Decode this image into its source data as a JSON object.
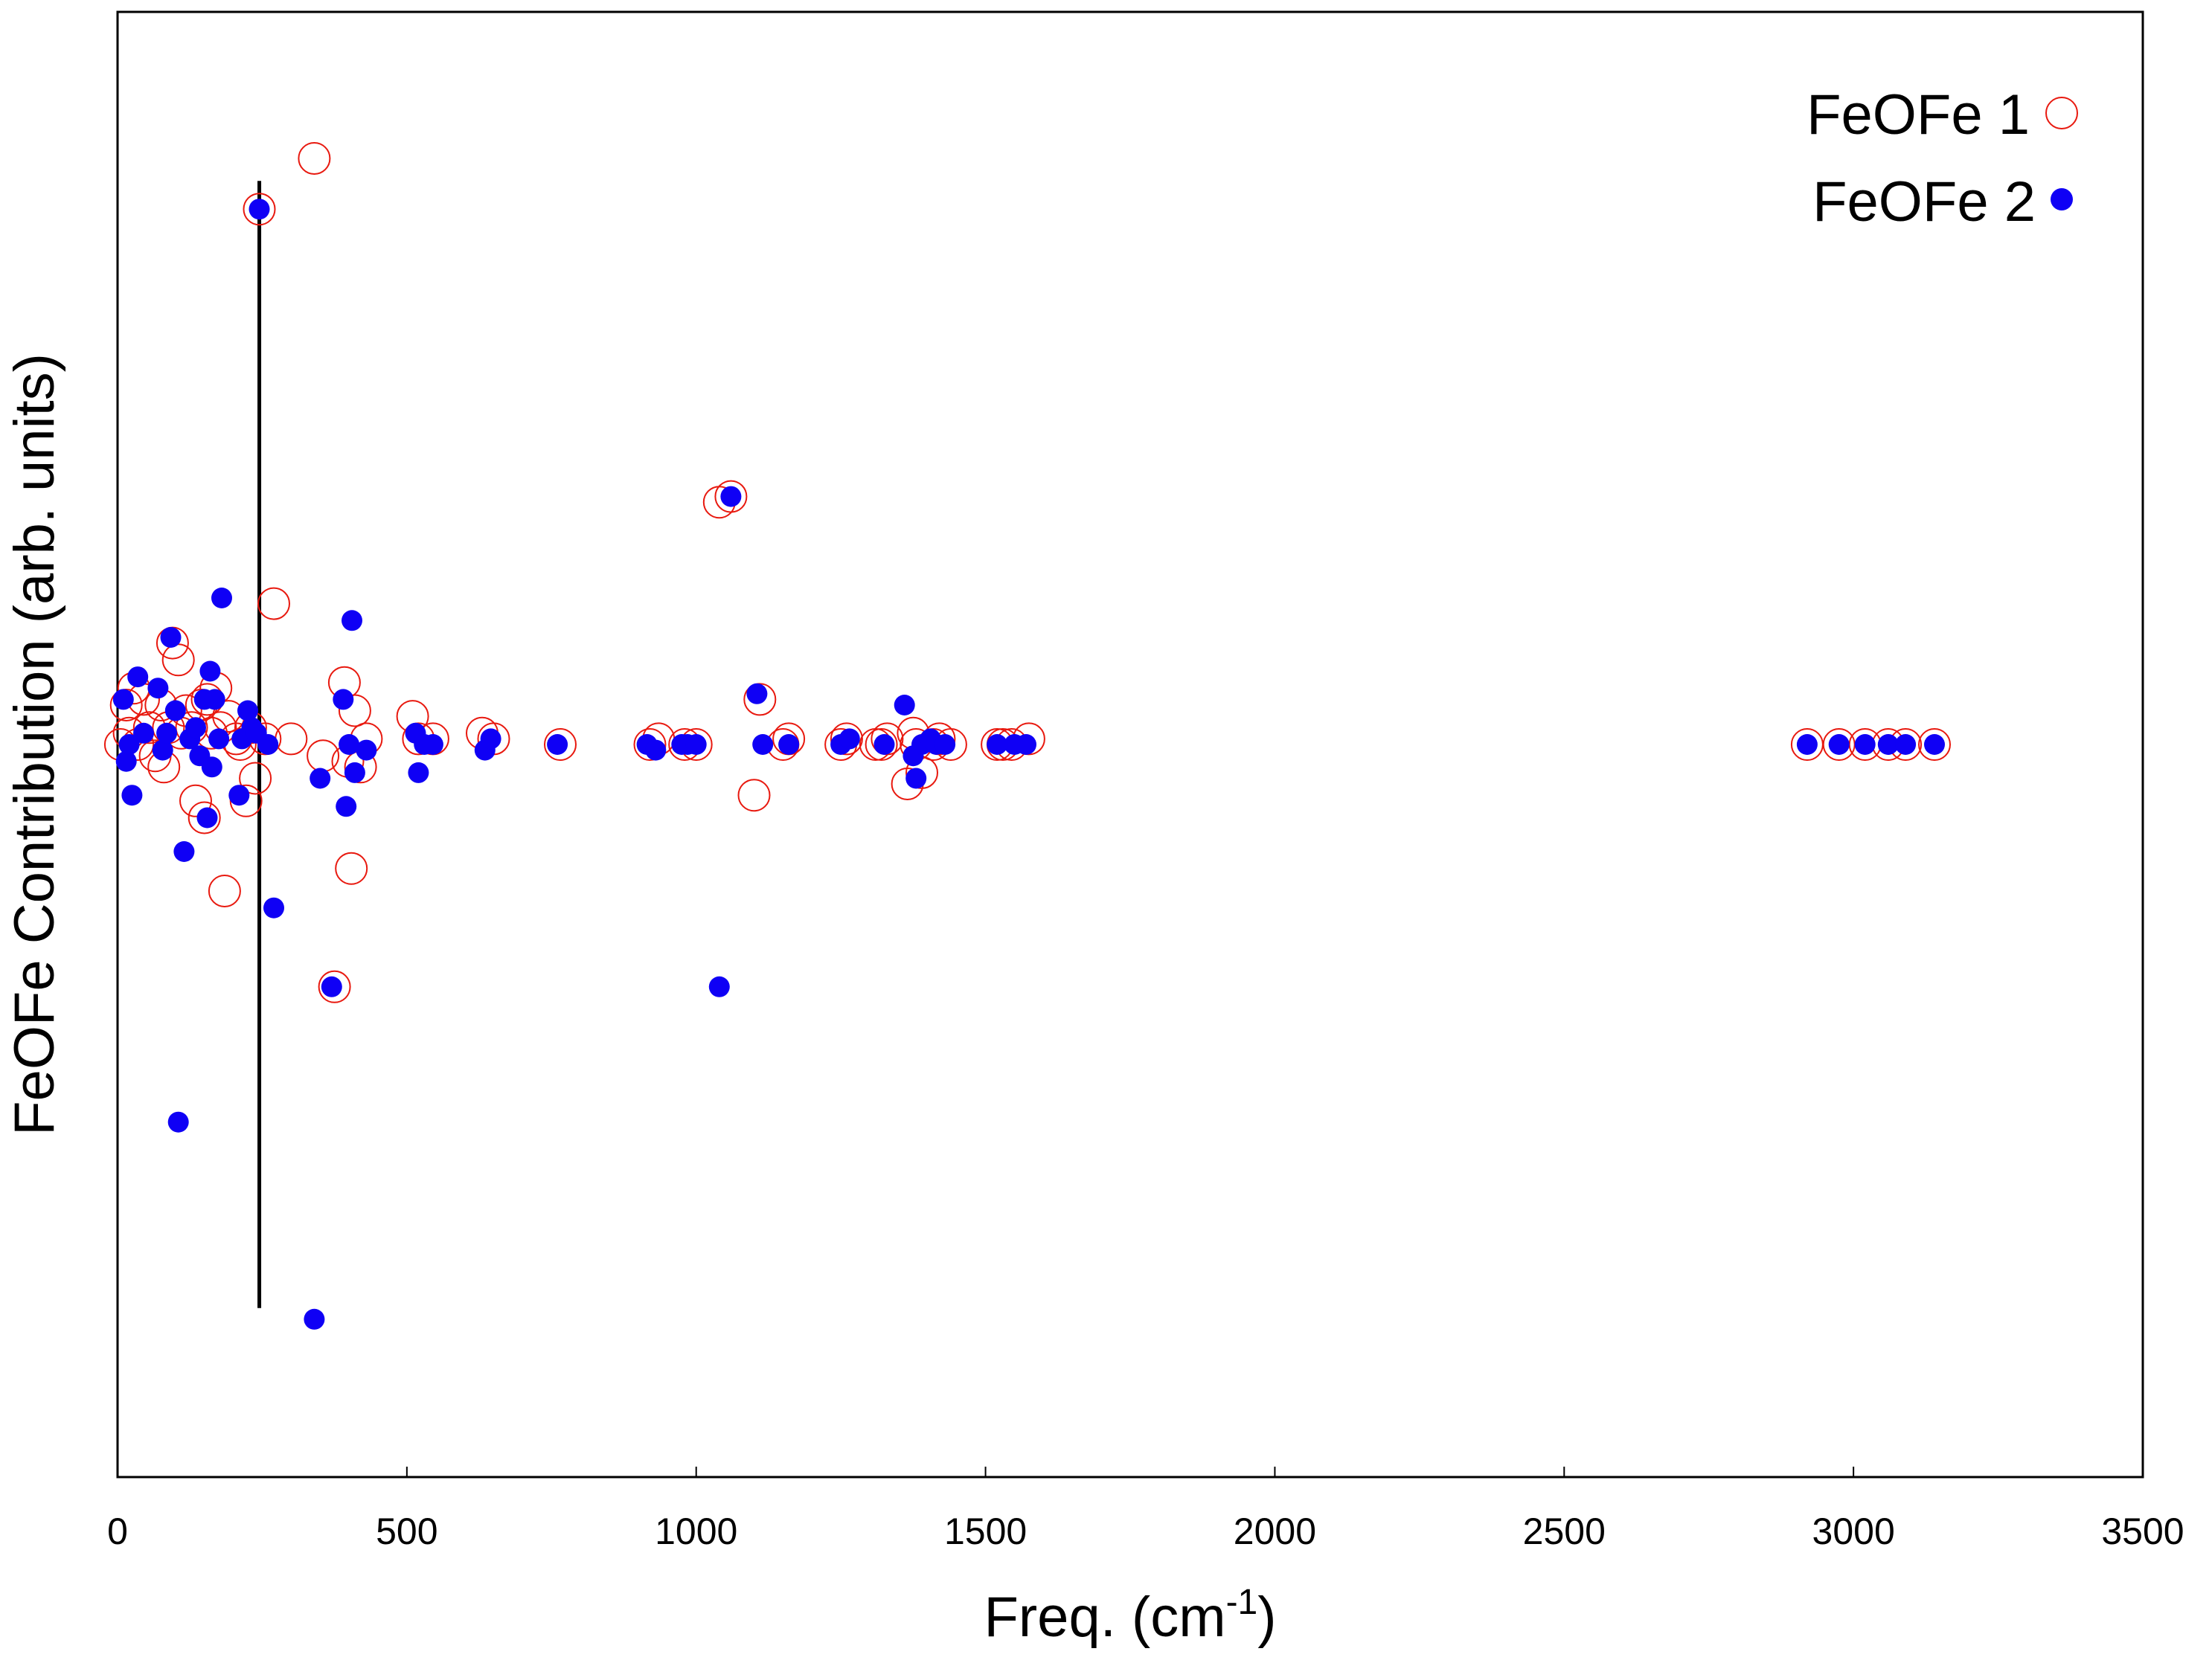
{
  "chart_data": {
    "type": "scatter",
    "xlabel": "Freq. (cm",
    "xlabel_sup": "-1",
    "xlabel_suffix": ")",
    "ylabel": "FeOFe Contribution (arb. units)",
    "xlim": [
      0,
      3500
    ],
    "ylim": [
      -1.3,
      1.3
    ],
    "xticks": [
      "0",
      "500",
      "1000",
      "1500",
      "2000",
      "2500",
      "3000",
      "3500"
    ],
    "grid": false,
    "legend_position": "top-right",
    "reference_line": {
      "x": 245,
      "y_range": [
        -1.0,
        1.0
      ]
    },
    "series": [
      {
        "name": "FeOFe 1",
        "marker": "open-circle",
        "color": "#e8190f",
        "points": [
          [
            5,
            0
          ],
          [
            15,
            0.07
          ],
          [
            20,
            0.02
          ],
          [
            28,
            0.1
          ],
          [
            35,
            0
          ],
          [
            45,
            0.08
          ],
          [
            55,
            0.03
          ],
          [
            65,
            -0.02
          ],
          [
            75,
            0.07
          ],
          [
            80,
            -0.04
          ],
          [
            88,
            0.03
          ],
          [
            95,
            0.18
          ],
          [
            105,
            0.15
          ],
          [
            110,
            0.02
          ],
          [
            118,
            0.06
          ],
          [
            128,
            0.03
          ],
          [
            135,
            -0.1
          ],
          [
            145,
            0.07
          ],
          [
            150,
            -0.13
          ],
          [
            155,
            0.08
          ],
          [
            162,
            0.02
          ],
          [
            170,
            0.1
          ],
          [
            178,
            0.03
          ],
          [
            185,
            -0.26
          ],
          [
            192,
            0.05
          ],
          [
            205,
            0.01
          ],
          [
            212,
            0
          ],
          [
            222,
            -0.1
          ],
          [
            230,
            0.03
          ],
          [
            238,
            -0.06
          ],
          [
            245,
            0.95
          ],
          [
            255,
            0.01
          ],
          [
            270,
            0.25
          ],
          [
            300,
            0.01
          ],
          [
            340,
            1.04
          ],
          [
            355,
            -0.02
          ],
          [
            375,
            -0.43
          ],
          [
            392,
            0.11
          ],
          [
            398,
            -0.03
          ],
          [
            404,
            -0.22
          ],
          [
            410,
            0.06
          ],
          [
            420,
            -0.04
          ],
          [
            430,
            0.01
          ],
          [
            510,
            0.05
          ],
          [
            520,
            0.01
          ],
          [
            545,
            0.01
          ],
          [
            630,
            0.02
          ],
          [
            650,
            0.01
          ],
          [
            765,
            0
          ],
          [
            920,
            0
          ],
          [
            935,
            0.01
          ],
          [
            980,
            0
          ],
          [
            1000,
            0
          ],
          [
            1040,
            0.43
          ],
          [
            1060,
            0.44
          ],
          [
            1100,
            -0.09
          ],
          [
            1110,
            0.08
          ],
          [
            1150,
            0
          ],
          [
            1160,
            0.01
          ],
          [
            1250,
            0
          ],
          [
            1260,
            0.01
          ],
          [
            1310,
            0
          ],
          [
            1320,
            0
          ],
          [
            1330,
            0.01
          ],
          [
            1365,
            -0.07
          ],
          [
            1375,
            0.02
          ],
          [
            1380,
            0
          ],
          [
            1390,
            -0.05
          ],
          [
            1410,
            0
          ],
          [
            1420,
            0.01
          ],
          [
            1440,
            0
          ],
          [
            1520,
            0
          ],
          [
            1530,
            0
          ],
          [
            1545,
            0
          ],
          [
            1575,
            0.01
          ],
          [
            2920,
            0
          ],
          [
            2975,
            0
          ],
          [
            3020,
            0
          ],
          [
            3060,
            0
          ],
          [
            3090,
            0
          ],
          [
            3140,
            0
          ]
        ]
      },
      {
        "name": "FeOFe 2",
        "marker": "filled-circle",
        "color": "#0f00f5",
        "points": [
          [
            10,
            0.08
          ],
          [
            15,
            -0.03
          ],
          [
            20,
            0
          ],
          [
            25,
            -0.09
          ],
          [
            35,
            0.12
          ],
          [
            45,
            0.02
          ],
          [
            70,
            0.1
          ],
          [
            78,
            -0.01
          ],
          [
            85,
            0.02
          ],
          [
            92,
            0.19
          ],
          [
            100,
            0.06
          ],
          [
            105,
            -0.67
          ],
          [
            115,
            -0.19
          ],
          [
            125,
            0.01
          ],
          [
            135,
            0.03
          ],
          [
            142,
            -0.02
          ],
          [
            150,
            0.08
          ],
          [
            155,
            -0.13
          ],
          [
            160,
            0.13
          ],
          [
            163,
            -0.04
          ],
          [
            168,
            0.08
          ],
          [
            175,
            0.01
          ],
          [
            180,
            0.26
          ],
          [
            210,
            -0.09
          ],
          [
            215,
            0.01
          ],
          [
            225,
            0.06
          ],
          [
            232,
            0.03
          ],
          [
            240,
            0.02
          ],
          [
            245,
            0.95
          ],
          [
            260,
            0
          ],
          [
            270,
            -0.29
          ],
          [
            340,
            -1.02
          ],
          [
            350,
            -0.06
          ],
          [
            370,
            -0.43
          ],
          [
            390,
            0.08
          ],
          [
            395,
            -0.11
          ],
          [
            400,
            0
          ],
          [
            405,
            0.22
          ],
          [
            410,
            -0.05
          ],
          [
            430,
            -0.01
          ],
          [
            515,
            0.02
          ],
          [
            520,
            -0.05
          ],
          [
            530,
            0
          ],
          [
            545,
            0
          ],
          [
            635,
            -0.01
          ],
          [
            645,
            0.01
          ],
          [
            760,
            0
          ],
          [
            915,
            0
          ],
          [
            930,
            -0.01
          ],
          [
            975,
            0
          ],
          [
            985,
            0
          ],
          [
            1000,
            0
          ],
          [
            1040,
            -0.43
          ],
          [
            1060,
            0.44
          ],
          [
            1105,
            0.09
          ],
          [
            1115,
            0
          ],
          [
            1160,
            0
          ],
          [
            1250,
            0
          ],
          [
            1265,
            0.01
          ],
          [
            1325,
            0
          ],
          [
            1360,
            0.07
          ],
          [
            1375,
            -0.02
          ],
          [
            1380,
            -0.06
          ],
          [
            1390,
            0
          ],
          [
            1405,
            0.01
          ],
          [
            1415,
            0
          ],
          [
            1430,
            0
          ],
          [
            1520,
            0
          ],
          [
            1550,
            0
          ],
          [
            1570,
            0
          ],
          [
            2920,
            0
          ],
          [
            2975,
            0
          ],
          [
            3020,
            0
          ],
          [
            3060,
            0
          ],
          [
            3090,
            0
          ],
          [
            3140,
            0
          ]
        ]
      }
    ]
  }
}
